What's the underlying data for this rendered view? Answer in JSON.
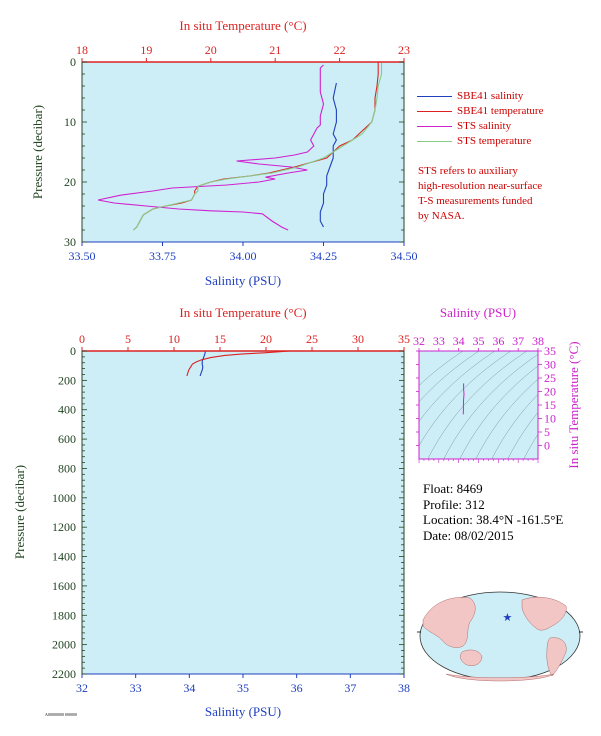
{
  "chart_data": [
    {
      "type": "line",
      "name": "upper",
      "x_top_label": "In situ Temperature (°C)",
      "x_bottom_label": "Salinity (PSU)",
      "ylabel": "Pressure (decibar)",
      "temp_ticks": [
        "18",
        "19",
        "20",
        "21",
        "22",
        "23"
      ],
      "sal_ticks": [
        "33.50",
        "33.75",
        "34.00",
        "34.25",
        "34.50"
      ],
      "pres_ticks": [
        "0",
        "10",
        "20",
        "30"
      ],
      "temp_range": [
        18,
        23
      ],
      "sal_range": [
        33.5,
        34.5
      ],
      "pres_range": [
        0,
        30
      ],
      "series": [
        {
          "name": "SBE41 salinity",
          "color": "#1f3fbf",
          "axis": "salinity",
          "points": [
            [
              34.29,
              3.5
            ],
            [
              34.28,
              6
            ],
            [
              34.29,
              8
            ],
            [
              34.29,
              10
            ],
            [
              34.28,
              12
            ],
            [
              34.29,
              13
            ],
            [
              34.28,
              14
            ],
            [
              34.28,
              16
            ],
            [
              34.27,
              17.5
            ],
            [
              34.26,
              19
            ],
            [
              34.26,
              20.5
            ],
            [
              34.25,
              22
            ],
            [
              34.25,
              23.5
            ],
            [
              34.24,
              25
            ],
            [
              34.24,
              26.5
            ],
            [
              34.25,
              27.5
            ]
          ]
        },
        {
          "name": "SBE41 temperature",
          "color": "#dd2222",
          "axis": "temperature",
          "points": [
            [
              22.6,
              0
            ],
            [
              22.6,
              2
            ],
            [
              22.58,
              4
            ],
            [
              22.55,
              6
            ],
            [
              22.55,
              8
            ],
            [
              22.5,
              10
            ],
            [
              22.3,
              12
            ],
            [
              22.2,
              13
            ],
            [
              22.0,
              14
            ],
            [
              21.9,
              15
            ],
            [
              21.8,
              16
            ],
            [
              21.3,
              17.5
            ],
            [
              20.9,
              18.5
            ],
            [
              20.6,
              19
            ],
            [
              20.2,
              19.5
            ],
            [
              20.0,
              20
            ],
            [
              19.8,
              20.7
            ],
            [
              19.75,
              21.5
            ],
            [
              19.75,
              22
            ],
            [
              19.7,
              23
            ],
            [
              19.55,
              23.5
            ],
            [
              19.3,
              24
            ],
            [
              19.1,
              24.5
            ],
            [
              18.95,
              25.5
            ],
            [
              18.9,
              26.5
            ],
            [
              18.85,
              27.5
            ],
            [
              18.8,
              28
            ]
          ]
        },
        {
          "name": "STS salinity",
          "color": "#d020d0",
          "axis": "salinity",
          "points": [
            [
              34.25,
              0.5
            ],
            [
              34.24,
              1
            ],
            [
              34.24,
              3
            ],
            [
              34.24,
              5
            ],
            [
              34.25,
              7
            ],
            [
              34.24,
              9
            ],
            [
              34.24,
              10.5
            ],
            [
              34.23,
              11
            ],
            [
              34.22,
              12
            ],
            [
              34.21,
              13
            ],
            [
              34.22,
              14
            ],
            [
              34.21,
              14.5
            ],
            [
              34.2,
              15
            ],
            [
              34.16,
              15.5
            ],
            [
              34.1,
              16
            ],
            [
              33.98,
              16.5
            ],
            [
              34.05,
              17
            ],
            [
              34.15,
              17.5
            ],
            [
              34.2,
              18
            ],
            [
              34.14,
              18.5
            ],
            [
              34.07,
              19.2
            ],
            [
              34.1,
              19.5
            ],
            [
              34.05,
              20
            ],
            [
              33.95,
              20.5
            ],
            [
              33.78,
              21
            ],
            [
              33.72,
              21.5
            ],
            [
              33.62,
              22.2
            ],
            [
              33.55,
              23
            ],
            [
              33.6,
              23.5
            ],
            [
              33.7,
              24
            ],
            [
              33.8,
              24.5
            ],
            [
              33.9,
              24.8
            ],
            [
              34.0,
              25
            ],
            [
              34.06,
              25.3
            ],
            [
              34.09,
              26.5
            ],
            [
              34.12,
              27.5
            ],
            [
              34.14,
              28
            ]
          ]
        },
        {
          "name": "STS temperature",
          "color": "#88cc88",
          "axis": "temperature",
          "points": [
            [
              22.65,
              0
            ],
            [
              22.65,
              2
            ],
            [
              22.6,
              4
            ],
            [
              22.58,
              6
            ],
            [
              22.55,
              8
            ],
            [
              22.5,
              10
            ],
            [
              22.35,
              12
            ],
            [
              22.2,
              13
            ],
            [
              22.05,
              14
            ],
            [
              21.9,
              15
            ],
            [
              21.75,
              16
            ],
            [
              21.35,
              17.5
            ],
            [
              20.95,
              18.5
            ],
            [
              20.6,
              19
            ],
            [
              20.25,
              19.5
            ],
            [
              20.0,
              20
            ],
            [
              19.8,
              20.7
            ],
            [
              19.8,
              21.5
            ],
            [
              19.75,
              22
            ],
            [
              19.7,
              23
            ],
            [
              19.5,
              23.5
            ],
            [
              19.3,
              24
            ],
            [
              19.1,
              24.5
            ],
            [
              18.95,
              25.5
            ],
            [
              18.9,
              26.5
            ],
            [
              18.85,
              27.5
            ],
            [
              18.8,
              28
            ]
          ]
        }
      ]
    },
    {
      "type": "line",
      "name": "lower",
      "x_top_label": "In situ Temperature (°C)",
      "x_bottom_label": "Salinity (PSU)",
      "ylabel": "Pressure (decibar)",
      "temp_ticks": [
        "0",
        "5",
        "10",
        "15",
        "20",
        "25",
        "30",
        "35"
      ],
      "sal_ticks": [
        "32",
        "33",
        "34",
        "35",
        "36",
        "37",
        "38"
      ],
      "pres_ticks": [
        "0",
        "200",
        "400",
        "600",
        "800",
        "1000",
        "1200",
        "1400",
        "1600",
        "1800",
        "2000",
        "2200"
      ],
      "temp_range": [
        0,
        35
      ],
      "sal_range": [
        32,
        38
      ],
      "pres_range": [
        0,
        2200
      ],
      "series": [
        {
          "name": "SBE41 salinity",
          "color": "#1f3fbf",
          "axis": "salinity",
          "points": [
            [
              34.3,
              0
            ],
            [
              34.29,
              20
            ],
            [
              34.27,
              40
            ],
            [
              34.24,
              70
            ],
            [
              34.24,
              90
            ],
            [
              34.25,
              110
            ],
            [
              34.24,
              130
            ],
            [
              34.22,
              150
            ],
            [
              34.2,
              170
            ]
          ]
        },
        {
          "name": "SBE41 temperature",
          "color": "#dd2222",
          "axis": "temperature",
          "points": [
            [
              22.6,
              0
            ],
            [
              21.5,
              5
            ],
            [
              19.8,
              12
            ],
            [
              17.5,
              20
            ],
            [
              15.5,
              30
            ],
            [
              14.0,
              45
            ],
            [
              13.0,
              60
            ],
            [
              12.4,
              75
            ],
            [
              12.0,
              90
            ],
            [
              11.8,
              110
            ],
            [
              11.6,
              130
            ],
            [
              11.5,
              150
            ],
            [
              11.4,
              170
            ]
          ]
        }
      ]
    },
    {
      "type": "scatter",
      "name": "ts-inset",
      "title": "Salinity (PSU)",
      "ylabel": "In situ Temperature (°C)",
      "x_ticks": [
        "32",
        "33",
        "34",
        "35",
        "36",
        "37",
        "38"
      ],
      "y_ticks": [
        "35",
        "30",
        "25",
        "20",
        "15",
        "10",
        "5",
        "0"
      ],
      "x_range": [
        32,
        38
      ],
      "y_range": [
        -5,
        35
      ],
      "series": [
        {
          "color": "#d020d0",
          "points": [
            [
              34.25,
              23
            ],
            [
              34.25,
              21
            ],
            [
              34.27,
              19
            ],
            [
              34.25,
              17
            ],
            [
              34.24,
              15
            ],
            [
              34.24,
              13
            ],
            [
              34.23,
              11.5
            ]
          ]
        }
      ]
    }
  ],
  "legend": {
    "items": [
      {
        "label": "SBE41 salinity",
        "color": "#1f3fbf"
      },
      {
        "label": "SBE41 temperature",
        "color": "#dd2222"
      },
      {
        "label": "STS salinity",
        "color": "#d020d0"
      },
      {
        "label": "STS temperature",
        "color": "#88cc88"
      }
    ]
  },
  "note": {
    "lines": [
      "STS refers to auxiliary",
      "high-resolution near-surface",
      "T-S measurements funded",
      "by NASA."
    ]
  },
  "info": {
    "float": "Float:  8469",
    "profile": "Profile:  312",
    "location": "Location:  38.4°N  -161.5°E",
    "date": "Date:  08/02/2015"
  },
  "map": {
    "marker_lat": 38.4,
    "marker_lon": -161.5,
    "marker_color": "#1f3fbf"
  },
  "footer": {
    "stamp": "A00000000 000000"
  },
  "colors": {
    "plot_bg": "#cdeef7",
    "temp_axis": "#dd2222",
    "sal_axis": "#1f3fbf",
    "pres_axis": "#224422",
    "inset_axis": "#cc22cc"
  }
}
